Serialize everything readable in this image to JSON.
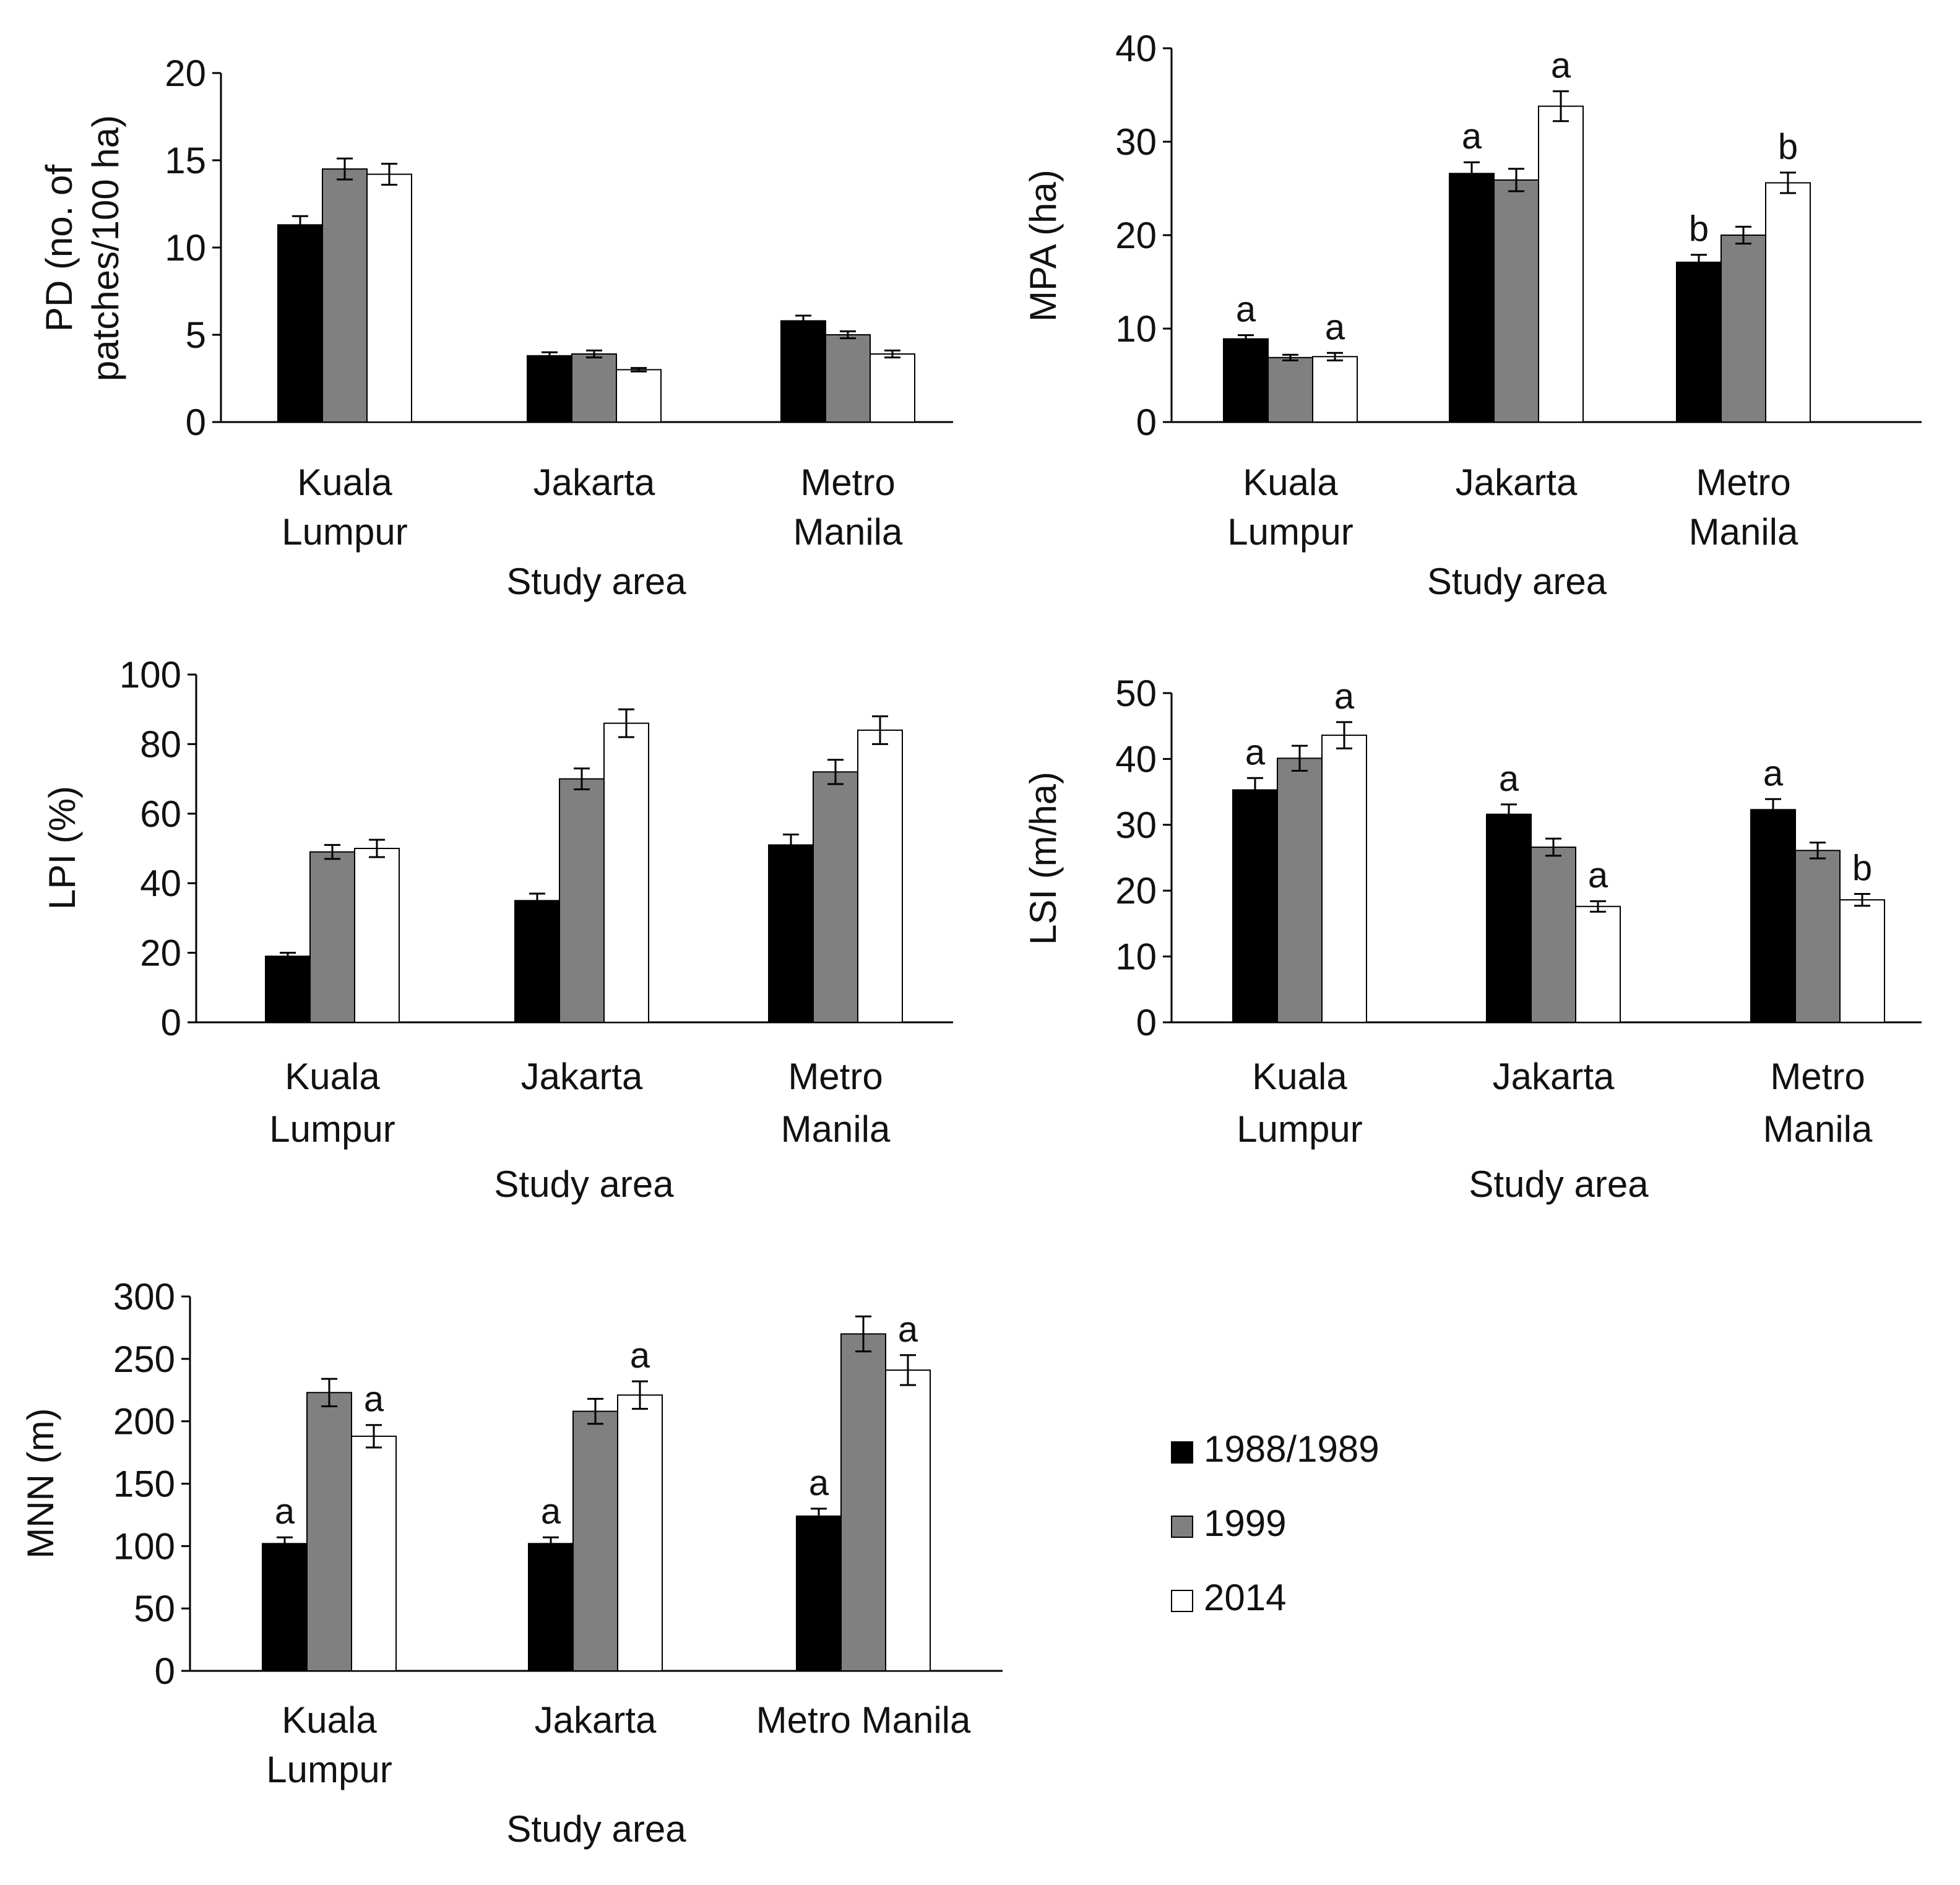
{
  "colors": {
    "axis": "#000000",
    "series": [
      "#000000",
      "#808080",
      "#ffffff"
    ],
    "outline": "#000000"
  },
  "legend": [
    {
      "label": "1988/1989"
    },
    {
      "label": "1999"
    },
    {
      "label": "2014"
    }
  ],
  "chart_data": [
    {
      "type": "bar",
      "ylabel_lines": [
        "PD (no. of",
        "patches/100 ha)"
      ],
      "xlabel": "Study area",
      "categories": [
        [
          "Kuala",
          "Lumpur"
        ],
        [
          "Jakarta"
        ],
        [
          "Metro",
          "Manila"
        ]
      ],
      "ylim": [
        0,
        20
      ],
      "yticks": [
        0,
        5,
        10,
        15,
        20
      ],
      "series": [
        {
          "name": "1988/1989",
          "values": [
            11.3,
            3.8,
            5.8
          ],
          "errors": [
            0.5,
            0.2,
            0.3
          ],
          "letters": [
            "",
            "",
            ""
          ]
        },
        {
          "name": "1999",
          "values": [
            14.5,
            3.9,
            5.0
          ],
          "errors": [
            0.6,
            0.2,
            0.2
          ],
          "letters": [
            "",
            "",
            ""
          ]
        },
        {
          "name": "2014",
          "values": [
            14.2,
            3.0,
            3.9
          ],
          "errors": [
            0.6,
            0.1,
            0.2
          ],
          "letters": [
            "",
            "",
            ""
          ]
        }
      ]
    },
    {
      "type": "bar",
      "ylabel_lines": [
        "MPA (ha)"
      ],
      "xlabel": "Study area",
      "categories": [
        [
          "Kuala",
          "Lumpur"
        ],
        [
          "Jakarta"
        ],
        [
          "Metro",
          "Manila"
        ]
      ],
      "ylim": [
        0,
        40
      ],
      "yticks": [
        0,
        10,
        20,
        30,
        40
      ],
      "series": [
        {
          "name": "1988/1989",
          "values": [
            8.9,
            26.6,
            17.1
          ],
          "errors": [
            0.4,
            1.2,
            0.8
          ],
          "letters": [
            "a",
            "a",
            "b"
          ]
        },
        {
          "name": "1999",
          "values": [
            6.9,
            25.9,
            20.0
          ],
          "errors": [
            0.3,
            1.2,
            0.9
          ],
          "letters": [
            "",
            "",
            ""
          ]
        },
        {
          "name": "2014",
          "values": [
            7.0,
            33.8,
            25.6
          ],
          "errors": [
            0.4,
            1.6,
            1.1
          ],
          "letters": [
            "a",
            "a",
            "b"
          ]
        }
      ]
    },
    {
      "type": "bar",
      "ylabel_lines": [
        "LPI (%)"
      ],
      "xlabel": "Study area",
      "categories": [
        [
          "Kuala",
          "Lumpur"
        ],
        [
          "Jakarta"
        ],
        [
          "Metro",
          "Manila"
        ]
      ],
      "ylim": [
        0,
        100
      ],
      "yticks": [
        0,
        20,
        40,
        60,
        80,
        100
      ],
      "series": [
        {
          "name": "1988/1989",
          "values": [
            19,
            35,
            51
          ],
          "errors": [
            1,
            2,
            3
          ],
          "letters": [
            "",
            "",
            ""
          ]
        },
        {
          "name": "1999",
          "values": [
            49,
            70,
            72
          ],
          "errors": [
            2,
            3,
            3.5
          ],
          "letters": [
            "",
            "",
            ""
          ]
        },
        {
          "name": "2014",
          "values": [
            50,
            86,
            84
          ],
          "errors": [
            2.5,
            4,
            4
          ],
          "letters": [
            "",
            "",
            ""
          ]
        }
      ]
    },
    {
      "type": "bar",
      "ylabel_lines": [
        "LSI (m/ha)"
      ],
      "xlabel": "Study area",
      "categories": [
        [
          "Kuala",
          "Lumpur"
        ],
        [
          "Jakarta"
        ],
        [
          "Metro",
          "Manila"
        ]
      ],
      "ylim": [
        0,
        50
      ],
      "yticks": [
        0,
        10,
        20,
        30,
        40,
        50
      ],
      "series": [
        {
          "name": "1988/1989",
          "values": [
            35.3,
            31.6,
            32.3
          ],
          "errors": [
            1.8,
            1.5,
            1.6
          ],
          "letters": [
            "a",
            "a",
            "a"
          ]
        },
        {
          "name": "1999",
          "values": [
            40.1,
            26.6,
            26.1
          ],
          "errors": [
            1.9,
            1.3,
            1.2
          ],
          "letters": [
            "",
            "",
            ""
          ]
        },
        {
          "name": "2014",
          "values": [
            43.6,
            17.6,
            18.6
          ],
          "errors": [
            2.0,
            0.8,
            0.9
          ],
          "letters": [
            "a",
            "a",
            "b"
          ]
        }
      ]
    },
    {
      "type": "bar",
      "ylabel_lines": [
        "MNN (m)"
      ],
      "xlabel": "Study area",
      "categories": [
        [
          "Kuala",
          "Lumpur"
        ],
        [
          "Jakarta"
        ],
        [
          "Metro Manila"
        ]
      ],
      "ylim": [
        0,
        300
      ],
      "yticks": [
        0,
        50,
        100,
        150,
        200,
        250,
        300
      ],
      "series": [
        {
          "name": "1988/1989",
          "values": [
            102,
            102,
            124
          ],
          "errors": [
            5,
            5,
            6
          ],
          "letters": [
            "a",
            "a",
            "a"
          ]
        },
        {
          "name": "1999",
          "values": [
            223,
            208,
            270
          ],
          "errors": [
            11,
            10,
            14
          ],
          "letters": [
            "",
            "",
            ""
          ]
        },
        {
          "name": "2014",
          "values": [
            188,
            221,
            241
          ],
          "errors": [
            9,
            11,
            12
          ],
          "letters": [
            "a",
            "a",
            "a"
          ]
        }
      ]
    }
  ]
}
